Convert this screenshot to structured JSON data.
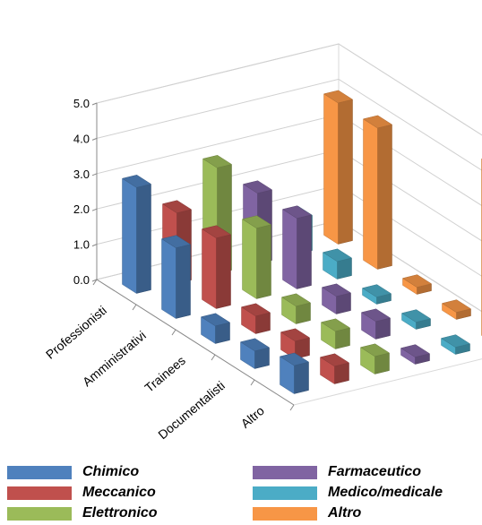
{
  "chart_data": {
    "type": "bar",
    "subtype": "3d-column",
    "categories": [
      "Professionisti",
      "Amministrativi",
      "Trainees",
      "Documentalisti",
      "Altro"
    ],
    "series": [
      {
        "name": "Chimico",
        "color": "#4f81bd",
        "values": [
          3.0,
          2.0,
          0.5,
          0.5,
          0.8
        ]
      },
      {
        "name": "Meccanico",
        "color": "#c0504d",
        "values": [
          2.0,
          2.0,
          0.5,
          0.5,
          0.5
        ]
      },
      {
        "name": "Elettronico",
        "color": "#9bbb59",
        "values": [
          3.0,
          2.0,
          0.5,
          0.5,
          0.5
        ]
      },
      {
        "name": "Farmaceutico",
        "color": "#8064a2",
        "values": [
          2.0,
          2.0,
          0.5,
          0.5,
          0.2
        ]
      },
      {
        "name": "Medico/medicale",
        "color": "#4bacc6",
        "values": [
          1.0,
          0.5,
          0.2,
          0.2,
          0.2
        ]
      },
      {
        "name": "Altro",
        "color": "#f79646",
        "values": [
          4.0,
          4.0,
          0.2,
          0.2,
          5.0
        ]
      }
    ],
    "y_ticks": [
      "0.0",
      "1.0",
      "2.0",
      "3.0",
      "4.0",
      "5.0"
    ],
    "ylim": [
      0,
      5
    ],
    "grid": true,
    "legend_position": "bottom"
  }
}
